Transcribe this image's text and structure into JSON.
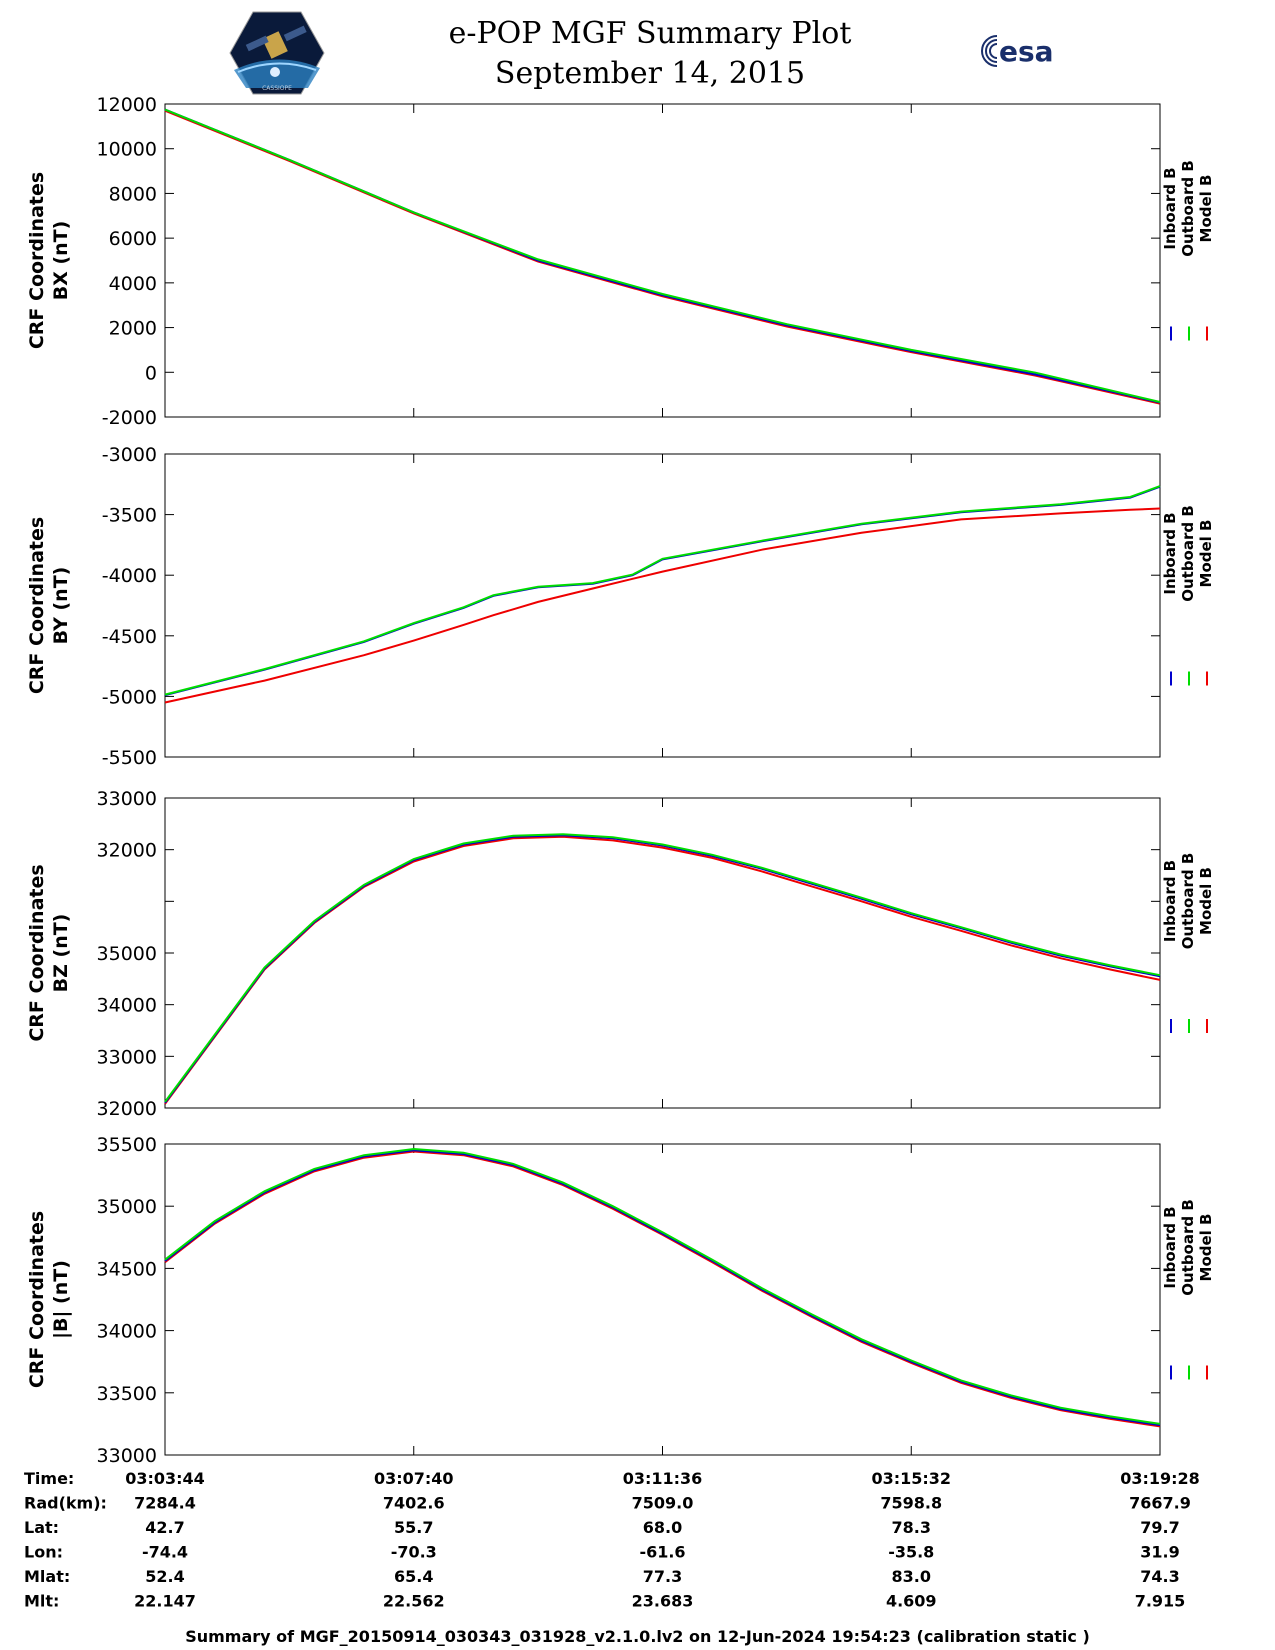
{
  "title": {
    "line1": "e-POP MGF Summary Plot",
    "line2": "September 14, 2015"
  },
  "logos": {
    "left": "CASSIOPE",
    "right": "esa"
  },
  "legend": {
    "entries": [
      "Inboard B",
      "Outboard B",
      "Model B"
    ],
    "colors": [
      "#0000cc",
      "#00dd00",
      "#ee0000"
    ]
  },
  "x_ticks": [
    "03:03:44",
    "03:07:40",
    "03:11:36",
    "03:15:32",
    "03:19:28"
  ],
  "ephemeris": [
    {
      "label": "Time:",
      "values": [
        "03:03:44",
        "03:07:40",
        "03:11:36",
        "03:15:32",
        "03:19:28"
      ]
    },
    {
      "label": "Rad(km):",
      "values": [
        "7284.4",
        "7402.6",
        "7509.0",
        "7598.8",
        "7667.9"
      ]
    },
    {
      "label": "Lat:",
      "values": [
        "42.7",
        "55.7",
        "68.0",
        "78.3",
        "79.7"
      ]
    },
    {
      "label": "Lon:",
      "values": [
        "-74.4",
        "-70.3",
        "-61.6",
        "-35.8",
        "31.9"
      ]
    },
    {
      "label": "Mlat:",
      "values": [
        "52.4",
        "65.4",
        "77.3",
        "83.0",
        "74.3"
      ]
    },
    {
      "label": "Mlt:",
      "values": [
        "22.147",
        "22.562",
        "23.683",
        "4.609",
        "7.915"
      ]
    }
  ],
  "footer": "Summary of MGF_20150914_030343_031928_v2.1.0.lv2 on 12-Jun-2024 19:54:23 (calibration static )",
  "chart_data": [
    {
      "type": "line",
      "name": "bx",
      "ylabel_line1": "CRF Coordinates",
      "ylabel_line2": "BX (nT)",
      "ylim": [
        -2000,
        12000
      ],
      "yticks": [
        {
          "v": 12000,
          "t": "12000"
        },
        {
          "v": 10000,
          "t": "10000"
        },
        {
          "v": 8000,
          "t": "8000"
        },
        {
          "v": 6000,
          "t": "6000"
        },
        {
          "v": 4000,
          "t": "4000"
        },
        {
          "v": 2000,
          "t": "2000"
        },
        {
          "v": 0,
          "t": "0"
        },
        {
          "v": -2000,
          "t": "-2000"
        }
      ],
      "x": [
        0,
        0.125,
        0.25,
        0.375,
        0.5,
        0.625,
        0.75,
        0.875,
        1
      ],
      "series": [
        {
          "name": "Inboard B",
          "values": [
            11750,
            9500,
            7150,
            5000,
            3450,
            2100,
            950,
            -100,
            -1350
          ]
        },
        {
          "name": "Outboard B",
          "values": [
            11750,
            9500,
            7150,
            5050,
            3500,
            2150,
            1000,
            -20,
            -1330
          ]
        },
        {
          "name": "Model B",
          "values": [
            11700,
            9450,
            7100,
            4950,
            3400,
            2050,
            900,
            -150,
            -1400
          ]
        }
      ]
    },
    {
      "type": "line",
      "name": "by",
      "ylabel_line1": "CRF Coordinates",
      "ylabel_line2": "BY (nT)",
      "ylim": [
        -5500,
        -3000
      ],
      "yticks": [
        {
          "v": -3000,
          "t": "-3000"
        },
        {
          "v": -3500,
          "t": "-3500"
        },
        {
          "v": -4000,
          "t": "-4000"
        },
        {
          "v": -4500,
          "t": "-4500"
        },
        {
          "v": -5000,
          "t": "-5000"
        },
        {
          "v": -5500,
          "t": "-5500"
        }
      ],
      "x": [
        0,
        0.1,
        0.2,
        0.25,
        0.3,
        0.33,
        0.375,
        0.43,
        0.47,
        0.5,
        0.6,
        0.7,
        0.8,
        0.9,
        0.97,
        1
      ],
      "series": [
        {
          "name": "Inboard B",
          "values": [
            -4990,
            -4780,
            -4550,
            -4400,
            -4270,
            -4170,
            -4100,
            -4070,
            -4000,
            -3870,
            -3720,
            -3580,
            -3480,
            -3420,
            -3360,
            -3270
          ]
        },
        {
          "name": "Outboard B",
          "values": [
            -4985,
            -4775,
            -4545,
            -4395,
            -4265,
            -4165,
            -4095,
            -4065,
            -3995,
            -3865,
            -3715,
            -3575,
            -3475,
            -3415,
            -3355,
            -3265
          ]
        },
        {
          "name": "Model B",
          "values": [
            -5050,
            -4870,
            -4660,
            -4540,
            -4410,
            -4330,
            -4220,
            -4110,
            -4030,
            -3970,
            -3790,
            -3650,
            -3540,
            -3490,
            -3460,
            -3450
          ]
        }
      ]
    },
    {
      "type": "line",
      "name": "bz",
      "ylabel_line1": "CRF Coordinates",
      "ylabel_line2": "BZ (nT)",
      "ylim": [
        0,
        6
      ],
      "yticks": [
        {
          "v": 6,
          "t": "33000"
        },
        {
          "v": 5,
          "t": "32000"
        },
        {
          "v": 4,
          "t": ""
        },
        {
          "v": 3,
          "t": "35000"
        },
        {
          "v": 2,
          "t": "34000"
        },
        {
          "v": 1,
          "t": "33000"
        },
        {
          "v": 0,
          "t": "32000"
        }
      ],
      "x": [
        0,
        0.05,
        0.1,
        0.15,
        0.2,
        0.25,
        0.3,
        0.35,
        0.4,
        0.45,
        0.5,
        0.55,
        0.6,
        0.65,
        0.7,
        0.75,
        0.8,
        0.85,
        0.9,
        0.95,
        1
      ],
      "series": [
        {
          "name": "Inboard B",
          "values": [
            0.1,
            1.4,
            2.7,
            3.6,
            4.3,
            4.8,
            5.1,
            5.25,
            5.28,
            5.22,
            5.08,
            4.88,
            4.63,
            4.34,
            4.05,
            3.75,
            3.48,
            3.2,
            2.95,
            2.74,
            2.55
          ]
        },
        {
          "name": "Outboard B",
          "values": [
            0.12,
            1.42,
            2.72,
            3.62,
            4.32,
            4.82,
            5.12,
            5.27,
            5.3,
            5.24,
            5.1,
            4.9,
            4.65,
            4.36,
            4.07,
            3.77,
            3.5,
            3.22,
            2.97,
            2.76,
            2.57
          ]
        },
        {
          "name": "Model B",
          "values": [
            0.08,
            1.38,
            2.68,
            3.58,
            4.28,
            4.77,
            5.07,
            5.22,
            5.25,
            5.18,
            5.04,
            4.84,
            4.58,
            4.29,
            4.0,
            3.7,
            3.43,
            3.15,
            2.9,
            2.68,
            2.48
          ]
        }
      ]
    },
    {
      "type": "line",
      "name": "bmag",
      "ylabel_line1": "CRF Coordinates",
      "ylabel_line2": "|B| (nT)",
      "ylim": [
        33000,
        35500
      ],
      "yticks": [
        {
          "v": 35500,
          "t": "35500"
        },
        {
          "v": 35000,
          "t": "35000"
        },
        {
          "v": 34500,
          "t": "34500"
        },
        {
          "v": 34000,
          "t": "34000"
        },
        {
          "v": 33500,
          "t": "33500"
        },
        {
          "v": 33000,
          "t": "33000"
        }
      ],
      "x": [
        0,
        0.05,
        0.1,
        0.15,
        0.2,
        0.25,
        0.3,
        0.35,
        0.4,
        0.45,
        0.5,
        0.55,
        0.6,
        0.65,
        0.7,
        0.75,
        0.8,
        0.85,
        0.9,
        0.95,
        1
      ],
      "series": [
        {
          "name": "Inboard B",
          "values": [
            34560,
            34870,
            35110,
            35290,
            35400,
            35450,
            35420,
            35330,
            35180,
            34990,
            34780,
            34560,
            34330,
            34120,
            33920,
            33750,
            33590,
            33470,
            33370,
            33300,
            33240
          ]
        },
        {
          "name": "Outboard B",
          "values": [
            34570,
            34880,
            35120,
            35300,
            35410,
            35460,
            35430,
            35340,
            35190,
            35000,
            34790,
            34570,
            34340,
            34130,
            33930,
            33760,
            33600,
            33480,
            33380,
            33310,
            33250
          ]
        },
        {
          "name": "Model B",
          "values": [
            34550,
            34860,
            35100,
            35280,
            35390,
            35440,
            35410,
            35320,
            35170,
            34980,
            34770,
            34550,
            34320,
            34110,
            33910,
            33740,
            33580,
            33460,
            33360,
            33290,
            33230
          ]
        }
      ]
    }
  ]
}
